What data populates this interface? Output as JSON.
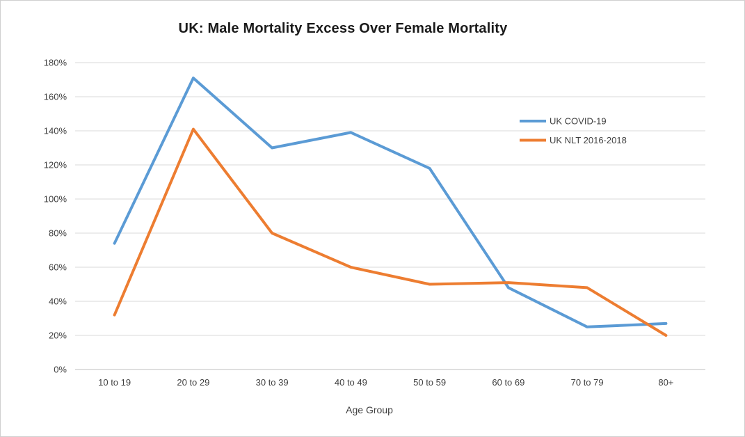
{
  "window": {
    "background_color": "#ffffff",
    "border_color": "#cfcfcf"
  },
  "chart_data": {
    "type": "line",
    "title": "UK: Male Mortality Excess Over Female Mortality",
    "xlabel": "Age Group",
    "ylabel": "",
    "categories": [
      "10 to 19",
      "20 to 29",
      "30 to 39",
      "40 to 49",
      "50 to 59",
      "60 to 69",
      "70 to 79",
      "80+"
    ],
    "series": [
      {
        "name": "UK COVID-19",
        "color": "#5B9BD5",
        "values": [
          74,
          171,
          130,
          139,
          118,
          48,
          25,
          27
        ]
      },
      {
        "name": "UK NLT 2016-2018",
        "color": "#ED7D31",
        "values": [
          32,
          141,
          80,
          60,
          50,
          51,
          48,
          20
        ]
      }
    ],
    "y_axis": {
      "min": 0,
      "max": 180,
      "step": 20,
      "tick_suffix": "%"
    },
    "y_tick_labels": [
      "0%",
      "20%",
      "40%",
      "60%",
      "80%",
      "100%",
      "120%",
      "140%",
      "160%",
      "180%"
    ],
    "grid": true,
    "legend_position": "inside-right",
    "colors": {
      "gridline": "#D9D9D9",
      "axis_line": "#BFBFBF",
      "tick_text": "#404040",
      "legend_text": "#404040",
      "title_text": "#1a1a1a"
    }
  }
}
